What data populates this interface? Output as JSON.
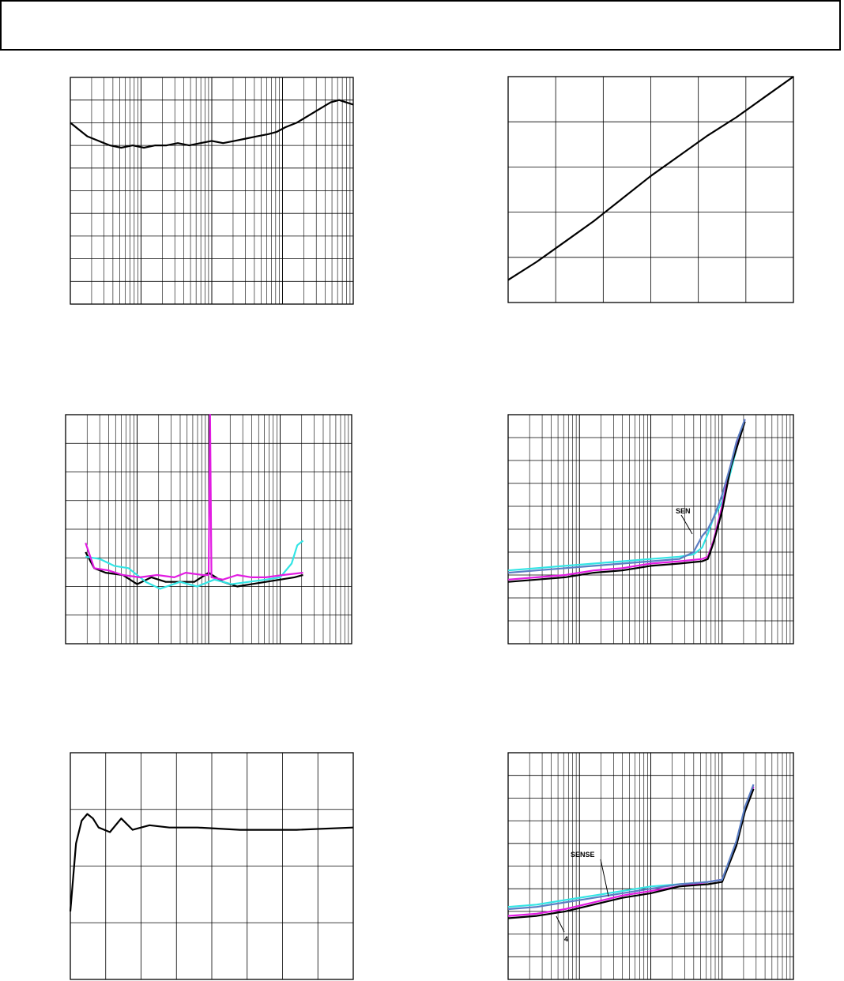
{
  "colors": {
    "black": "#000000",
    "cyan": "#33e5e5",
    "magenta": "#e21ce2",
    "blue": "#5a7ec4",
    "grid": "#000000"
  },
  "header": {
    "title": ""
  },
  "chart_data": [
    {
      "id": "chart1",
      "type": "line",
      "x_scale": "log",
      "grid": true,
      "series": [
        {
          "color": "black",
          "points": [
            [
              0.0,
              0.8
            ],
            [
              0.03,
              0.77
            ],
            [
              0.06,
              0.74
            ],
            [
              0.1,
              0.72
            ],
            [
              0.14,
              0.7
            ],
            [
              0.18,
              0.69
            ],
            [
              0.22,
              0.7
            ],
            [
              0.26,
              0.69
            ],
            [
              0.3,
              0.7
            ],
            [
              0.34,
              0.7
            ],
            [
              0.38,
              0.71
            ],
            [
              0.42,
              0.7
            ],
            [
              0.46,
              0.71
            ],
            [
              0.5,
              0.72
            ],
            [
              0.54,
              0.71
            ],
            [
              0.58,
              0.72
            ],
            [
              0.62,
              0.73
            ],
            [
              0.66,
              0.74
            ],
            [
              0.7,
              0.75
            ],
            [
              0.73,
              0.76
            ],
            [
              0.76,
              0.78
            ],
            [
              0.8,
              0.8
            ],
            [
              0.84,
              0.83
            ],
            [
              0.88,
              0.86
            ],
            [
              0.92,
              0.89
            ],
            [
              0.95,
              0.9
            ],
            [
              1.0,
              0.88
            ]
          ]
        }
      ]
    },
    {
      "id": "chart2",
      "type": "line",
      "grid": true,
      "series": [
        {
          "color": "black",
          "points": [
            [
              0.0,
              0.1
            ],
            [
              0.1,
              0.18
            ],
            [
              0.2,
              0.27
            ],
            [
              0.3,
              0.36
            ],
            [
              0.4,
              0.46
            ],
            [
              0.5,
              0.56
            ],
            [
              0.6,
              0.65
            ],
            [
              0.7,
              0.74
            ],
            [
              0.8,
              0.82
            ],
            [
              0.9,
              0.91
            ],
            [
              1.0,
              1.0
            ]
          ]
        }
      ]
    },
    {
      "id": "chart3",
      "type": "line",
      "x_scale": "log",
      "grid": true,
      "series": [
        {
          "color": "black",
          "points": [
            [
              0.07,
              0.4
            ],
            [
              0.1,
              0.33
            ],
            [
              0.14,
              0.31
            ],
            [
              0.2,
              0.3
            ],
            [
              0.25,
              0.26
            ],
            [
              0.3,
              0.29
            ],
            [
              0.35,
              0.27
            ],
            [
              0.45,
              0.27
            ],
            [
              0.5,
              0.31
            ],
            [
              0.55,
              0.27
            ],
            [
              0.6,
              0.25
            ],
            [
              0.65,
              0.26
            ],
            [
              0.7,
              0.27
            ],
            [
              0.75,
              0.28
            ],
            [
              0.8,
              0.29
            ],
            [
              0.83,
              0.3
            ]
          ]
        },
        {
          "color": "cyan",
          "points": [
            [
              0.07,
              0.38
            ],
            [
              0.12,
              0.37
            ],
            [
              0.17,
              0.34
            ],
            [
              0.22,
              0.33
            ],
            [
              0.28,
              0.27
            ],
            [
              0.33,
              0.24
            ],
            [
              0.4,
              0.27
            ],
            [
              0.46,
              0.25
            ],
            [
              0.52,
              0.28
            ],
            [
              0.58,
              0.26
            ],
            [
              0.64,
              0.27
            ],
            [
              0.7,
              0.28
            ],
            [
              0.75,
              0.29
            ],
            [
              0.79,
              0.35
            ],
            [
              0.81,
              0.43
            ],
            [
              0.83,
              0.45
            ]
          ]
        },
        {
          "color": "magenta",
          "points": [
            [
              0.07,
              0.44
            ],
            [
              0.1,
              0.33
            ],
            [
              0.15,
              0.32
            ],
            [
              0.2,
              0.3
            ],
            [
              0.26,
              0.29
            ],
            [
              0.32,
              0.3
            ],
            [
              0.38,
              0.29
            ],
            [
              0.42,
              0.31
            ],
            [
              0.48,
              0.3
            ],
            [
              0.5,
              0.3
            ],
            [
              0.505,
              1.0
            ],
            [
              0.51,
              0.29
            ],
            [
              0.55,
              0.28
            ],
            [
              0.6,
              0.3
            ],
            [
              0.65,
              0.29
            ],
            [
              0.7,
              0.29
            ],
            [
              0.76,
              0.3
            ],
            [
              0.83,
              0.31
            ]
          ]
        }
      ]
    },
    {
      "id": "chart4",
      "type": "line",
      "x_scale": "log",
      "grid": true,
      "annotations": [
        "SEN"
      ],
      "series": [
        {
          "color": "cyan",
          "points": [
            [
              0.0,
              0.32
            ],
            [
              0.1,
              0.33
            ],
            [
              0.2,
              0.34
            ],
            [
              0.3,
              0.35
            ],
            [
              0.4,
              0.36
            ],
            [
              0.5,
              0.37
            ],
            [
              0.6,
              0.38
            ],
            [
              0.65,
              0.39
            ],
            [
              0.68,
              0.42
            ],
            [
              0.7,
              0.48
            ],
            [
              0.72,
              0.55
            ],
            [
              0.75,
              0.62
            ],
            [
              0.78,
              0.75
            ],
            [
              0.8,
              0.85
            ],
            [
              0.83,
              0.98
            ]
          ]
        },
        {
          "color": "magenta",
          "points": [
            [
              0.0,
              0.28
            ],
            [
              0.1,
              0.29
            ],
            [
              0.2,
              0.3
            ],
            [
              0.3,
              0.32
            ],
            [
              0.4,
              0.33
            ],
            [
              0.5,
              0.35
            ],
            [
              0.6,
              0.36
            ],
            [
              0.68,
              0.37
            ],
            [
              0.7,
              0.38
            ],
            [
              0.72,
              0.45
            ],
            [
              0.75,
              0.6
            ],
            [
              0.78,
              0.78
            ],
            [
              0.83,
              0.98
            ]
          ]
        },
        {
          "color": "black",
          "points": [
            [
              0.0,
              0.27
            ],
            [
              0.1,
              0.28
            ],
            [
              0.2,
              0.29
            ],
            [
              0.3,
              0.31
            ],
            [
              0.4,
              0.32
            ],
            [
              0.5,
              0.34
            ],
            [
              0.6,
              0.35
            ],
            [
              0.68,
              0.36
            ],
            [
              0.7,
              0.37
            ],
            [
              0.72,
              0.44
            ],
            [
              0.75,
              0.58
            ],
            [
              0.78,
              0.77
            ],
            [
              0.83,
              0.97
            ]
          ]
        },
        {
          "color": "blue",
          "points": [
            [
              0.0,
              0.31
            ],
            [
              0.1,
              0.32
            ],
            [
              0.2,
              0.33
            ],
            [
              0.3,
              0.34
            ],
            [
              0.4,
              0.35
            ],
            [
              0.5,
              0.36
            ],
            [
              0.6,
              0.37
            ],
            [
              0.65,
              0.4
            ],
            [
              0.68,
              0.47
            ],
            [
              0.7,
              0.5
            ],
            [
              0.72,
              0.55
            ],
            [
              0.75,
              0.65
            ],
            [
              0.78,
              0.78
            ],
            [
              0.8,
              0.88
            ],
            [
              0.83,
              0.98
            ]
          ]
        }
      ]
    },
    {
      "id": "chart5",
      "type": "line",
      "grid": true,
      "series": [
        {
          "color": "black",
          "points": [
            [
              0.0,
              0.3
            ],
            [
              0.02,
              0.6
            ],
            [
              0.04,
              0.7
            ],
            [
              0.06,
              0.73
            ],
            [
              0.08,
              0.71
            ],
            [
              0.1,
              0.67
            ],
            [
              0.14,
              0.65
            ],
            [
              0.18,
              0.71
            ],
            [
              0.22,
              0.66
            ],
            [
              0.28,
              0.68
            ],
            [
              0.35,
              0.67
            ],
            [
              0.45,
              0.67
            ],
            [
              0.6,
              0.66
            ],
            [
              0.8,
              0.66
            ],
            [
              1.0,
              0.67
            ]
          ]
        }
      ]
    },
    {
      "id": "chart6",
      "type": "line",
      "x_scale": "log",
      "grid": true,
      "annotations": [
        "SENSE",
        "4"
      ],
      "series": [
        {
          "color": "cyan",
          "points": [
            [
              0.0,
              0.32
            ],
            [
              0.1,
              0.33
            ],
            [
              0.2,
              0.35
            ],
            [
              0.3,
              0.37
            ],
            [
              0.4,
              0.39
            ],
            [
              0.5,
              0.41
            ],
            [
              0.6,
              0.42
            ],
            [
              0.7,
              0.43
            ],
            [
              0.75,
              0.44
            ],
            [
              0.8,
              0.6
            ],
            [
              0.83,
              0.75
            ],
            [
              0.86,
              0.85
            ]
          ]
        },
        {
          "color": "magenta",
          "points": [
            [
              0.0,
              0.28
            ],
            [
              0.1,
              0.29
            ],
            [
              0.2,
              0.31
            ],
            [
              0.3,
              0.34
            ],
            [
              0.4,
              0.37
            ],
            [
              0.5,
              0.39
            ],
            [
              0.6,
              0.41
            ],
            [
              0.7,
              0.43
            ],
            [
              0.75,
              0.44
            ],
            [
              0.8,
              0.6
            ],
            [
              0.83,
              0.75
            ],
            [
              0.86,
              0.85
            ]
          ]
        },
        {
          "color": "black",
          "points": [
            [
              0.0,
              0.27
            ],
            [
              0.1,
              0.28
            ],
            [
              0.2,
              0.3
            ],
            [
              0.3,
              0.33
            ],
            [
              0.4,
              0.36
            ],
            [
              0.5,
              0.38
            ],
            [
              0.6,
              0.41
            ],
            [
              0.7,
              0.42
            ],
            [
              0.75,
              0.43
            ],
            [
              0.8,
              0.59
            ],
            [
              0.83,
              0.74
            ],
            [
              0.86,
              0.84
            ]
          ]
        },
        {
          "color": "blue",
          "points": [
            [
              0.0,
              0.31
            ],
            [
              0.1,
              0.32
            ],
            [
              0.2,
              0.34
            ],
            [
              0.3,
              0.36
            ],
            [
              0.4,
              0.38
            ],
            [
              0.5,
              0.4
            ],
            [
              0.6,
              0.42
            ],
            [
              0.7,
              0.43
            ],
            [
              0.75,
              0.44
            ],
            [
              0.8,
              0.61
            ],
            [
              0.83,
              0.76
            ],
            [
              0.86,
              0.86
            ]
          ]
        }
      ]
    }
  ]
}
